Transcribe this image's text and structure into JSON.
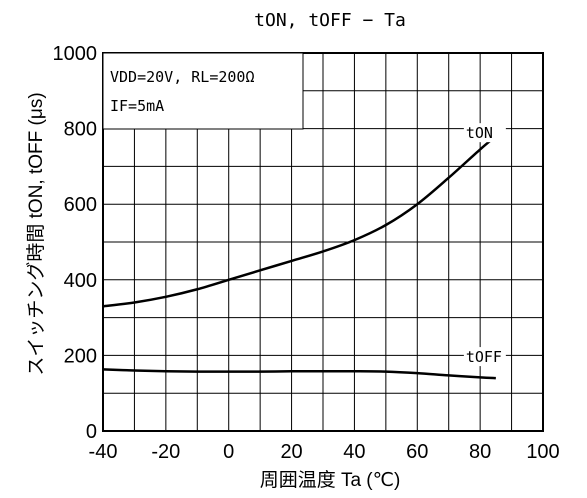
{
  "chart_data": {
    "type": "line",
    "title": "tON, tOFF − Ta",
    "xlabel": "周囲温度 Ta (℃)",
    "ylabel": "スイッチング時間 tON, tOFF (μs)",
    "xlim": [
      -40,
      100
    ],
    "ylim": [
      0,
      1000
    ],
    "x_ticks": [
      "-40",
      "-20",
      "0",
      "20",
      "40",
      "60",
      "80",
      "100"
    ],
    "y_ticks": [
      "0",
      "200",
      "400",
      "600",
      "800",
      "1000"
    ],
    "grid": true,
    "conditions": [
      "VDD=20V, RL=200Ω",
      "IF=5mA"
    ],
    "series": [
      {
        "name": "tON",
        "x": [
          -40,
          -30,
          -20,
          -10,
          0,
          10,
          20,
          30,
          40,
          50,
          60,
          70,
          80,
          85
        ],
        "values": [
          330,
          340,
          355,
          375,
          400,
          425,
          450,
          475,
          505,
          545,
          600,
          670,
          745,
          780
        ]
      },
      {
        "name": "tOFF",
        "x": [
          -40,
          -30,
          -20,
          -10,
          0,
          10,
          20,
          30,
          40,
          50,
          60,
          70,
          80,
          85
        ],
        "values": [
          163,
          160,
          158,
          157,
          157,
          157,
          158,
          158,
          158,
          157,
          153,
          147,
          142,
          140
        ]
      }
    ]
  }
}
